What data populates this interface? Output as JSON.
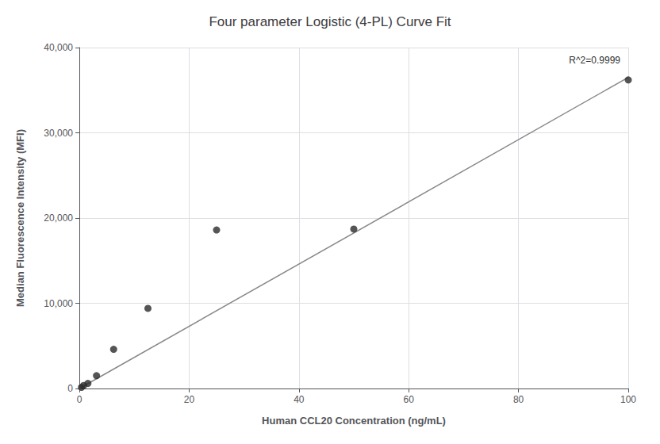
{
  "chart_data": {
    "type": "scatter",
    "title": "Four parameter Logistic (4-PL) Curve Fit",
    "xlabel": "Human CCL20 Concentration (ng/mL)",
    "ylabel": "Median Fluorescence Intensity (MFI)",
    "series": [
      {
        "type": "line",
        "color": "#888888",
        "x": [
          0,
          100
        ],
        "values": [
          0,
          36500
        ]
      },
      {
        "type": "scatter",
        "color": "#2b2b2b",
        "x": [
          0.39,
          0.78,
          1.56,
          3.13,
          6.25,
          12.5,
          25,
          50,
          100
        ],
        "values": [
          130,
          350,
          600,
          1500,
          4600,
          9400,
          18600,
          18700,
          36200
        ]
      }
    ],
    "xlim": [
      0,
      100
    ],
    "ylim": [
      0,
      40000
    ],
    "xticks": [
      0,
      20,
      40,
      60,
      80,
      100
    ],
    "yticks": [
      0,
      {
        "value": 10000,
        "label": "10,000"
      },
      {
        "value": 20000,
        "label": "20,000"
      },
      {
        "value": 30000,
        "label": "30,000"
      },
      {
        "value": 40000,
        "label": "40,000"
      }
    ],
    "annotation": "R^2=0.9999",
    "grid": true
  }
}
